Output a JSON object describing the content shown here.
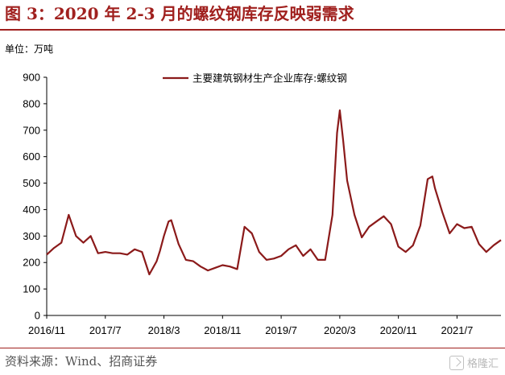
{
  "header": {
    "title": "图 3：2020 年 2-3 月的螺纹钢库存反映弱需求",
    "unit": "单位：万吨"
  },
  "footer": {
    "source": "资料来源：Wind、招商证券",
    "watermark": "格隆汇"
  },
  "colors": {
    "accent": "#a0201e",
    "series": "#8b1a1a"
  },
  "chart_data": {
    "type": "line",
    "title": "",
    "xlabel": "",
    "ylabel": "",
    "ylim": [
      0,
      900
    ],
    "yticks": [
      0,
      100,
      200,
      300,
      400,
      500,
      600,
      700,
      800,
      900
    ],
    "xlim": [
      "2016-11",
      "2022-01"
    ],
    "xticks": [
      "2016/11",
      "2017/7",
      "2018/3",
      "2018/11",
      "2019/7",
      "2020/3",
      "2020/11",
      "2021/7"
    ],
    "grid": false,
    "legend": "top-right",
    "series": [
      {
        "name": "主要建筑钢材生产企业库存:螺纹钢",
        "points": [
          [
            "2016-11",
            230
          ],
          [
            "2016-12",
            255
          ],
          [
            "2017-01",
            275
          ],
          [
            "2017-02",
            380
          ],
          [
            "2017-03",
            300
          ],
          [
            "2017-04",
            275
          ],
          [
            "2017-05",
            300
          ],
          [
            "2017-06",
            235
          ],
          [
            "2017-07",
            240
          ],
          [
            "2017-08",
            235
          ],
          [
            "2017-09",
            235
          ],
          [
            "2017-10",
            230
          ],
          [
            "2017-11",
            250
          ],
          [
            "2017-12",
            240
          ],
          [
            "2018-01",
            155
          ],
          [
            "2018-02",
            205
          ],
          [
            "2018-02-15",
            245
          ],
          [
            "2018-03",
            300
          ],
          [
            "2018-03-20",
            355
          ],
          [
            "2018-04",
            360
          ],
          [
            "2018-05",
            270
          ],
          [
            "2018-06",
            210
          ],
          [
            "2018-07",
            205
          ],
          [
            "2018-08",
            185
          ],
          [
            "2018-09",
            170
          ],
          [
            "2018-10",
            180
          ],
          [
            "2018-11",
            190
          ],
          [
            "2018-12",
            185
          ],
          [
            "2019-01",
            175
          ],
          [
            "2019-02",
            335
          ],
          [
            "2019-03",
            310
          ],
          [
            "2019-04",
            240
          ],
          [
            "2019-05",
            210
          ],
          [
            "2019-06",
            215
          ],
          [
            "2019-07",
            225
          ],
          [
            "2019-08",
            250
          ],
          [
            "2019-09",
            265
          ],
          [
            "2019-10",
            225
          ],
          [
            "2019-11",
            250
          ],
          [
            "2019-12",
            210
          ],
          [
            "2020-01",
            210
          ],
          [
            "2020-02",
            380
          ],
          [
            "2020-02-20",
            690
          ],
          [
            "2020-03",
            775
          ],
          [
            "2020-03-15",
            660
          ],
          [
            "2020-04",
            510
          ],
          [
            "2020-05",
            380
          ],
          [
            "2020-06",
            295
          ],
          [
            "2020-07",
            335
          ],
          [
            "2020-08",
            355
          ],
          [
            "2020-09",
            375
          ],
          [
            "2020-10",
            345
          ],
          [
            "2020-11",
            260
          ],
          [
            "2020-12",
            240
          ],
          [
            "2021-01",
            265
          ],
          [
            "2021-02",
            340
          ],
          [
            "2021-03",
            515
          ],
          [
            "2021-03-20",
            525
          ],
          [
            "2021-04",
            480
          ],
          [
            "2021-05",
            390
          ],
          [
            "2021-06",
            310
          ],
          [
            "2021-07",
            345
          ],
          [
            "2021-08",
            330
          ],
          [
            "2021-09",
            335
          ],
          [
            "2021-10",
            270
          ],
          [
            "2021-11",
            240
          ],
          [
            "2021-12",
            265
          ],
          [
            "2022-01",
            285
          ]
        ]
      }
    ]
  }
}
